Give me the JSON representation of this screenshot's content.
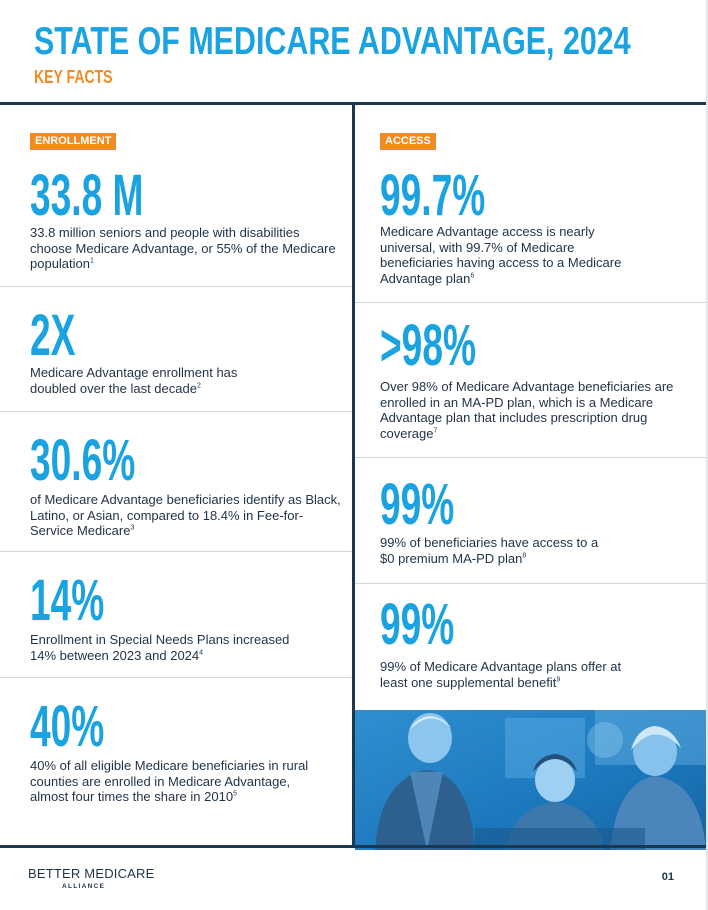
{
  "header": {
    "title": "STATE OF MEDICARE ADVANTAGE, 2024",
    "subtitle": "KEY FACTS"
  },
  "left_column": {
    "tag": "ENROLLMENT",
    "facts": [
      {
        "stat": "33.8 M",
        "text": "33.8 million seniors and people with disabilities choose Medicare Advantage, or 55% of the Medicare population",
        "footnote": "1"
      },
      {
        "stat": "2X",
        "text": "Medicare Advantage enrollment has doubled over the last decade",
        "footnote": "2"
      },
      {
        "stat": "30.6%",
        "text": "of Medicare Advantage beneficiaries identify as Black, Latino, or Asian, compared to 18.4% in Fee-for-Service Medicare",
        "footnote": "3"
      },
      {
        "stat": "14%",
        "text": "Enrollment in Special Needs Plans increased 14% between 2023 and 2024",
        "footnote": "4"
      },
      {
        "stat": "40%",
        "text": "40% of all eligible Medicare beneficiaries in rural counties are enrolled in Medicare Advantage, almost four times the share in 2010",
        "footnote": "5"
      }
    ]
  },
  "right_column": {
    "tag": "ACCESS",
    "facts": [
      {
        "stat": "99.7%",
        "text": "Medicare Advantage access is nearly universal, with 99.7% of Medicare beneficiaries having access to a Medicare Advantage plan",
        "footnote": "6"
      },
      {
        "stat": ">98%",
        "text": "Over 98% of Medicare Advantage beneficiaries are enrolled in an MA-PD plan, which is a Medicare Advantage plan that includes prescription drug coverage",
        "footnote": "7"
      },
      {
        "stat": "99%",
        "text": "99% of beneficiaries have access to a $0 premium MA-PD plan",
        "footnote": "8"
      },
      {
        "stat": "99%",
        "text": "99% of Medicare Advantage plans offer at least one supplemental benefit",
        "footnote": "9"
      }
    ]
  },
  "footer": {
    "logo_main": "BETTER MEDICARE",
    "logo_sub": "ALLIANCE",
    "page_number": "01"
  },
  "colors": {
    "accent_blue": "#1aa3e0",
    "accent_orange": "#f08a21",
    "navy": "#1c3750"
  }
}
